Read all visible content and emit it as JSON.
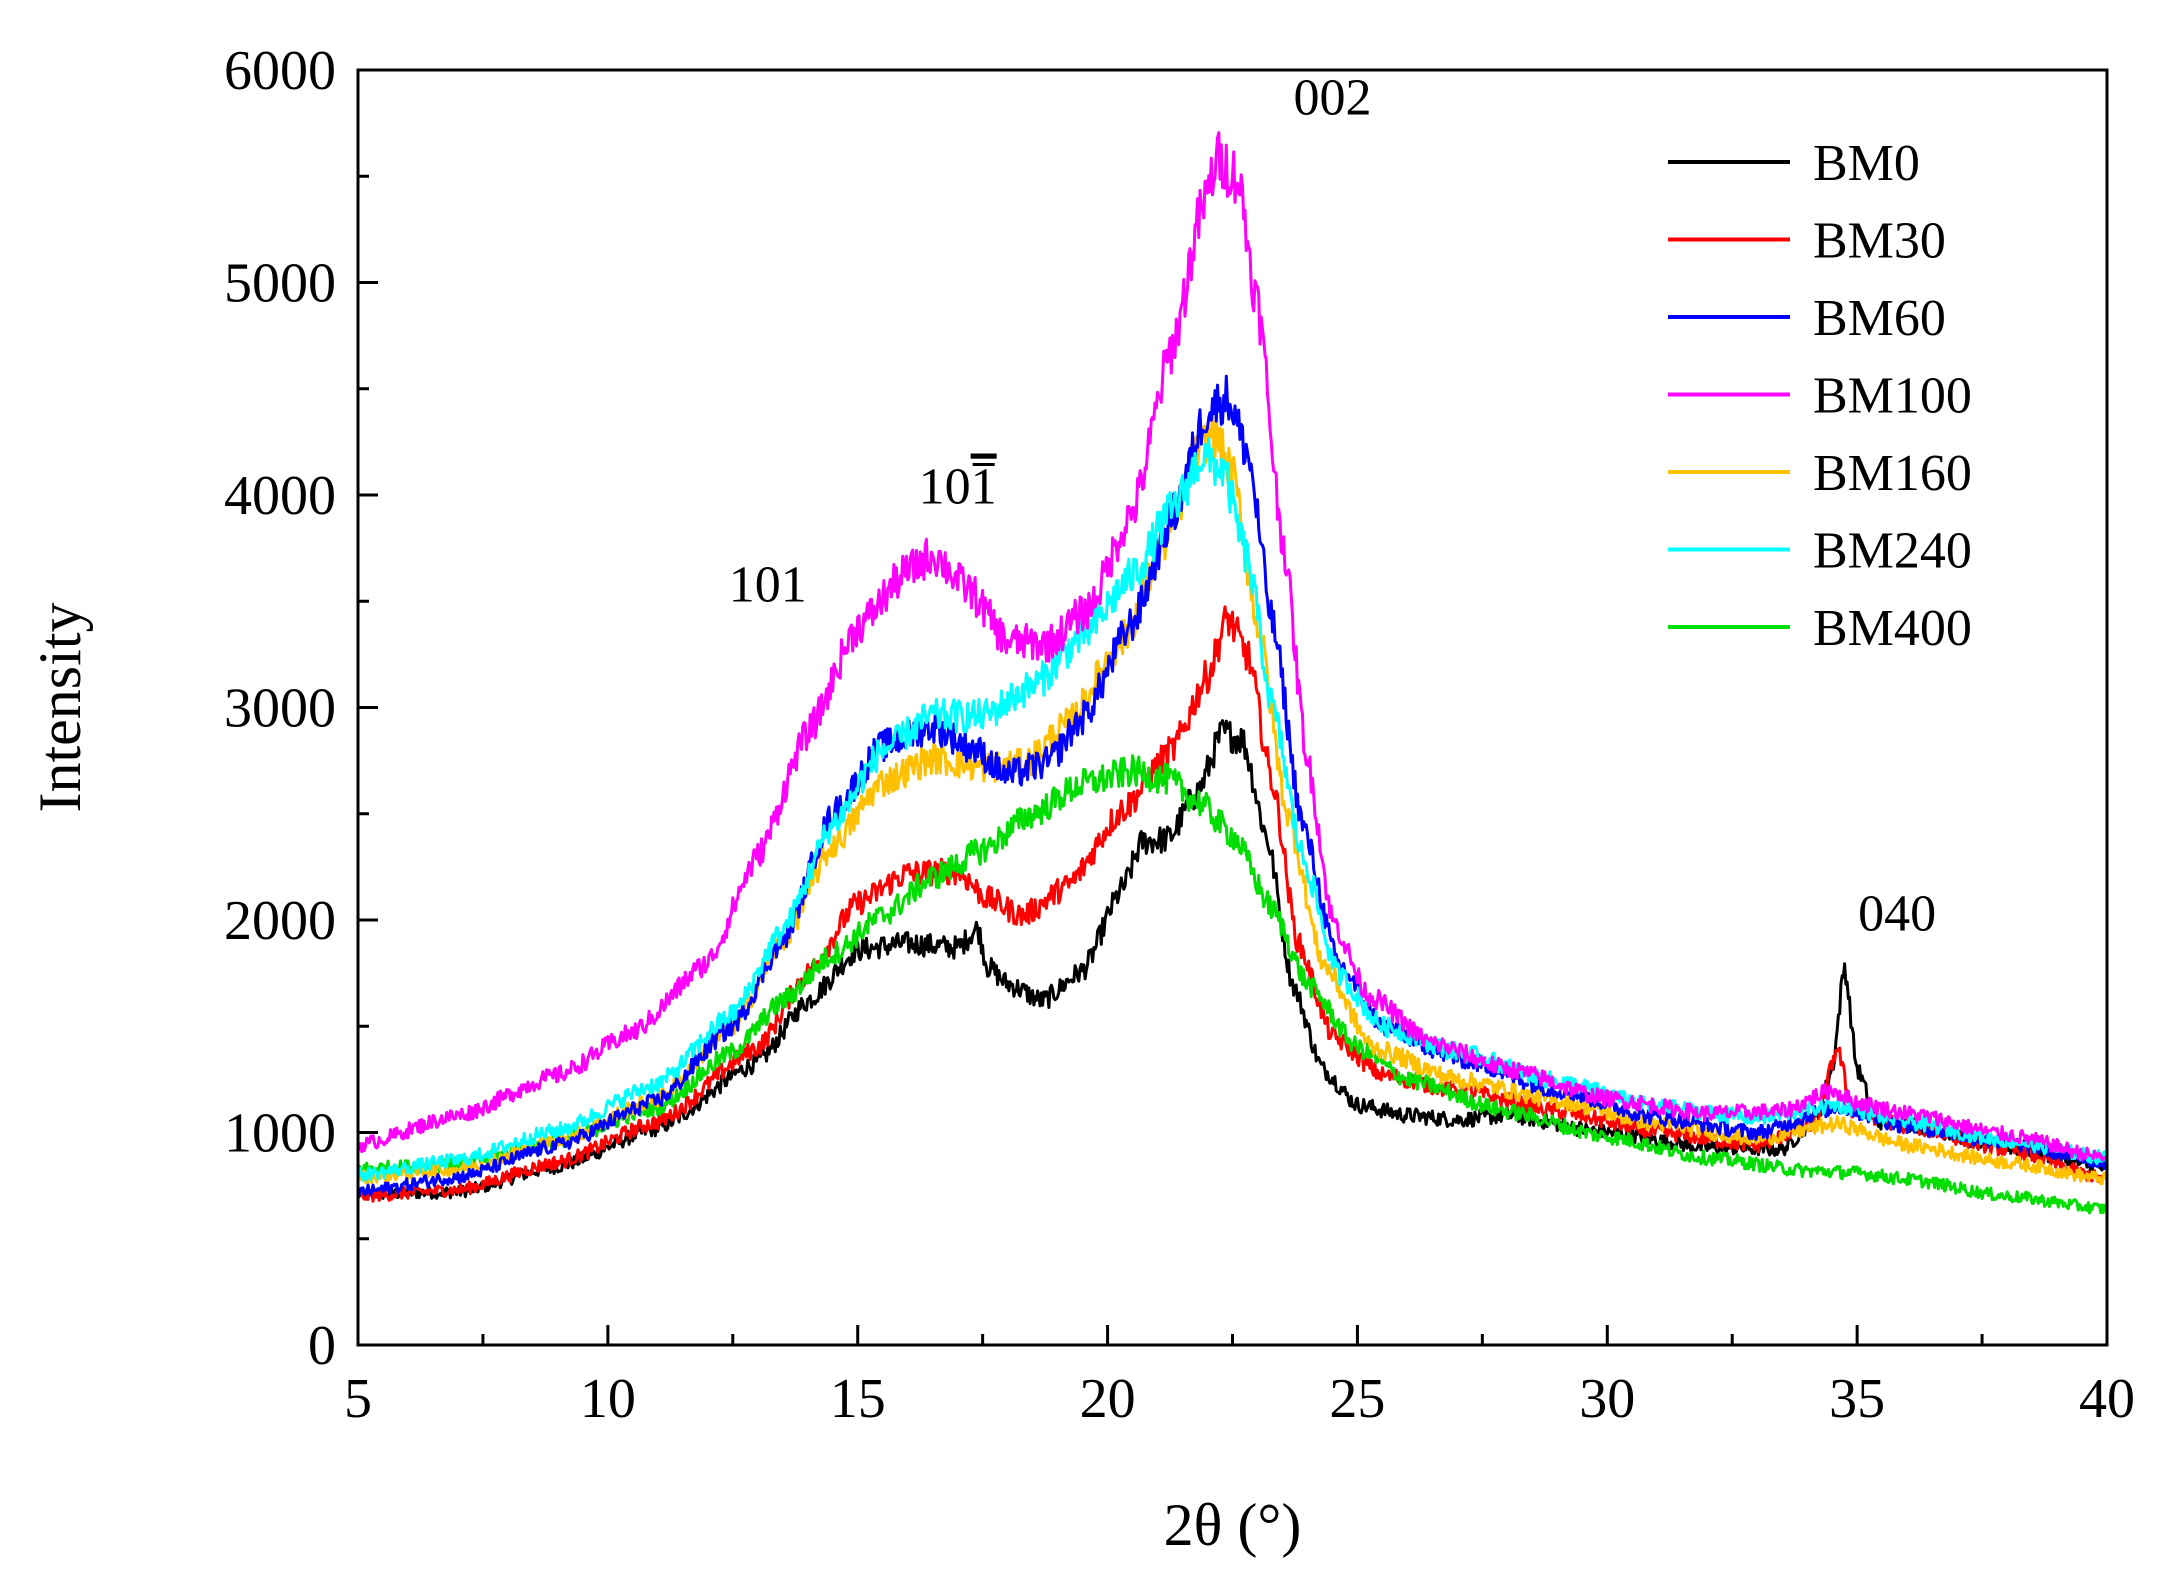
{
  "chart_data": {
    "type": "line",
    "title": "",
    "xlabel": "2θ (°)",
    "ylabel": "Intensity",
    "xlim": [
      5,
      40
    ],
    "ylim": [
      0,
      6000
    ],
    "x_ticks": [
      5,
      10,
      15,
      20,
      25,
      30,
      35,
      40
    ],
    "y_ticks": [
      0,
      1000,
      2000,
      3000,
      4000,
      5000,
      6000
    ],
    "x_tick_labels": [
      "5",
      "10",
      "15",
      "20",
      "25",
      "30",
      "35",
      "40"
    ],
    "y_tick_labels": [
      "0",
      "1000",
      "2000",
      "3000",
      "4000",
      "5000",
      "6000"
    ],
    "legend_position": "top-right",
    "series": [
      {
        "name": "BM0",
        "color": "#000000",
        "points": [
          [
            5,
            710
          ],
          [
            7,
            720
          ],
          [
            9,
            840
          ],
          [
            11,
            1020
          ],
          [
            13,
            1330
          ],
          [
            14,
            1620
          ],
          [
            15,
            1860
          ],
          [
            16,
            1890
          ],
          [
            17,
            1870
          ],
          [
            17.4,
            1960
          ],
          [
            17.6,
            1780
          ],
          [
            18,
            1700
          ],
          [
            18.7,
            1620
          ],
          [
            19.5,
            1760
          ],
          [
            20.3,
            2150
          ],
          [
            20.7,
            2370
          ],
          [
            21.2,
            2380
          ],
          [
            21.8,
            2600
          ],
          [
            22.3,
            2880
          ],
          [
            22.7,
            2850
          ],
          [
            23.2,
            2380
          ],
          [
            23.7,
            1700
          ],
          [
            24.3,
            1300
          ],
          [
            25,
            1130
          ],
          [
            26,
            1080
          ],
          [
            27,
            1060
          ],
          [
            28,
            1080
          ],
          [
            30,
            1000
          ],
          [
            32,
            930
          ],
          [
            33.5,
            920
          ],
          [
            34.2,
            1070
          ],
          [
            34.5,
            1300
          ],
          [
            34.75,
            1780
          ],
          [
            35,
            1300
          ],
          [
            35.4,
            1050
          ],
          [
            36,
            1040
          ],
          [
            38,
            930
          ],
          [
            40,
            830
          ]
        ]
      },
      {
        "name": "BM30",
        "color": "#ff0000",
        "points": [
          [
            5,
            700
          ],
          [
            7,
            730
          ],
          [
            9,
            860
          ],
          [
            11,
            1050
          ],
          [
            13,
            1400
          ],
          [
            14,
            1750
          ],
          [
            15,
            2080
          ],
          [
            16,
            2220
          ],
          [
            17,
            2230
          ],
          [
            17.6,
            2100
          ],
          [
            18.3,
            2020
          ],
          [
            19.2,
            2160
          ],
          [
            20.3,
            2520
          ],
          [
            21.3,
            2800
          ],
          [
            22,
            3150
          ],
          [
            22.4,
            3420
          ],
          [
            22.8,
            3250
          ],
          [
            23.3,
            2650
          ],
          [
            23.8,
            1900
          ],
          [
            24.5,
            1450
          ],
          [
            25.5,
            1270
          ],
          [
            27,
            1200
          ],
          [
            29,
            1100
          ],
          [
            31,
            1000
          ],
          [
            33,
            940
          ],
          [
            34.2,
            1050
          ],
          [
            34.6,
            1400
          ],
          [
            34.9,
            1100
          ],
          [
            36,
            1030
          ],
          [
            38,
            920
          ],
          [
            40,
            780
          ]
        ]
      },
      {
        "name": "BM60",
        "color": "#0000ff",
        "points": [
          [
            5,
            720
          ],
          [
            7,
            790
          ],
          [
            9,
            940
          ],
          [
            11,
            1150
          ],
          [
            12.5,
            1500
          ],
          [
            13.5,
            1900
          ],
          [
            14.5,
            2500
          ],
          [
            15.5,
            2820
          ],
          [
            16.5,
            2910
          ],
          [
            17.3,
            2810
          ],
          [
            18,
            2680
          ],
          [
            18.8,
            2740
          ],
          [
            19.5,
            2950
          ],
          [
            20.5,
            3400
          ],
          [
            21.3,
            3900
          ],
          [
            22,
            4400
          ],
          [
            22.4,
            4460
          ],
          [
            22.8,
            4200
          ],
          [
            23.3,
            3400
          ],
          [
            23.9,
            2450
          ],
          [
            24.6,
            1800
          ],
          [
            25.5,
            1500
          ],
          [
            27,
            1350
          ],
          [
            29,
            1200
          ],
          [
            31,
            1070
          ],
          [
            33,
            1000
          ],
          [
            34.6,
            1120
          ],
          [
            36,
            1030
          ],
          [
            38,
            950
          ],
          [
            40,
            860
          ]
        ]
      },
      {
        "name": "BM100",
        "color": "#ff00ff",
        "points": [
          [
            5,
            940
          ],
          [
            7,
            1080
          ],
          [
            9,
            1270
          ],
          [
            10.5,
            1470
          ],
          [
            12,
            1800
          ],
          [
            13,
            2300
          ],
          [
            14,
            2880
          ],
          [
            15,
            3380
          ],
          [
            16,
            3640
          ],
          [
            16.5,
            3720
          ],
          [
            17.2,
            3560
          ],
          [
            18,
            3310
          ],
          [
            18.8,
            3300
          ],
          [
            19.6,
            3460
          ],
          [
            20.5,
            3920
          ],
          [
            21.3,
            4700
          ],
          [
            21.9,
            5350
          ],
          [
            22.2,
            5580
          ],
          [
            22.6,
            5500
          ],
          [
            23,
            4900
          ],
          [
            23.5,
            3800
          ],
          [
            24,
            2750
          ],
          [
            24.5,
            2000
          ],
          [
            25.2,
            1650
          ],
          [
            26.5,
            1420
          ],
          [
            28,
            1300
          ],
          [
            30,
            1160
          ],
          [
            32,
            1090
          ],
          [
            33.5,
            1100
          ],
          [
            34.5,
            1200
          ],
          [
            35,
            1140
          ],
          [
            36,
            1090
          ],
          [
            38,
            990
          ],
          [
            40,
            880
          ]
        ]
      },
      {
        "name": "BM160",
        "color": "#ffc000",
        "points": [
          [
            5,
            790
          ],
          [
            7,
            830
          ],
          [
            9,
            960
          ],
          [
            11,
            1160
          ],
          [
            12.5,
            1500
          ],
          [
            13.5,
            1900
          ],
          [
            14.5,
            2350
          ],
          [
            15.5,
            2650
          ],
          [
            16.5,
            2760
          ],
          [
            17.5,
            2720
          ],
          [
            18.3,
            2730
          ],
          [
            19.2,
            2920
          ],
          [
            20.3,
            3320
          ],
          [
            21.2,
            3800
          ],
          [
            21.8,
            4200
          ],
          [
            22.1,
            4300
          ],
          [
            22.5,
            4100
          ],
          [
            23,
            3400
          ],
          [
            23.6,
            2500
          ],
          [
            24.3,
            1800
          ],
          [
            25.3,
            1400
          ],
          [
            27,
            1250
          ],
          [
            29,
            1150
          ],
          [
            31,
            1040
          ],
          [
            33,
            970
          ],
          [
            34.6,
            1040
          ],
          [
            36,
            940
          ],
          [
            38,
            860
          ],
          [
            40,
            780
          ]
        ]
      },
      {
        "name": "BM240",
        "color": "#00ffff",
        "points": [
          [
            5,
            800
          ],
          [
            7,
            870
          ],
          [
            9,
            1010
          ],
          [
            11,
            1230
          ],
          [
            12.5,
            1560
          ],
          [
            13.5,
            1950
          ],
          [
            14.5,
            2450
          ],
          [
            15.5,
            2800
          ],
          [
            16.5,
            2960
          ],
          [
            17.5,
            2960
          ],
          [
            18.5,
            3100
          ],
          [
            19.5,
            3330
          ],
          [
            20.5,
            3620
          ],
          [
            21.3,
            3930
          ],
          [
            21.9,
            4180
          ],
          [
            22.3,
            4120
          ],
          [
            22.8,
            3700
          ],
          [
            23.3,
            3000
          ],
          [
            23.9,
            2300
          ],
          [
            24.6,
            1750
          ],
          [
            25.5,
            1500
          ],
          [
            27,
            1380
          ],
          [
            29,
            1240
          ],
          [
            31,
            1120
          ],
          [
            33,
            1070
          ],
          [
            34.6,
            1130
          ],
          [
            36,
            1050
          ],
          [
            38,
            960
          ],
          [
            40,
            880
          ]
        ]
      },
      {
        "name": "BM400",
        "color": "#00dd00",
        "points": [
          [
            5,
            830
          ],
          [
            7,
            850
          ],
          [
            9,
            960
          ],
          [
            11,
            1120
          ],
          [
            12.5,
            1380
          ],
          [
            13.5,
            1620
          ],
          [
            14.5,
            1840
          ],
          [
            15.5,
            2020
          ],
          [
            16.5,
            2200
          ],
          [
            17.5,
            2330
          ],
          [
            18.5,
            2500
          ],
          [
            19.5,
            2640
          ],
          [
            20.5,
            2700
          ],
          [
            21.2,
            2660
          ],
          [
            21.8,
            2560
          ],
          [
            22.5,
            2400
          ],
          [
            23.3,
            2050
          ],
          [
            24,
            1700
          ],
          [
            25,
            1400
          ],
          [
            26,
            1250
          ],
          [
            28,
            1100
          ],
          [
            30,
            980
          ],
          [
            32,
            880
          ],
          [
            34,
            820
          ],
          [
            35,
            810
          ],
          [
            36,
            780
          ],
          [
            38,
            700
          ],
          [
            40,
            640
          ]
        ]
      }
    ],
    "annotations": [
      {
        "text": "101",
        "x": 13.2,
        "y": 3500
      },
      {
        "text": "10",
        "overbar_digit": "1",
        "x": 17.0,
        "y": 3960
      },
      {
        "text": "002",
        "x": 24.5,
        "y": 5790
      },
      {
        "text": "040",
        "x": 35.8,
        "y": 1950
      }
    ]
  }
}
